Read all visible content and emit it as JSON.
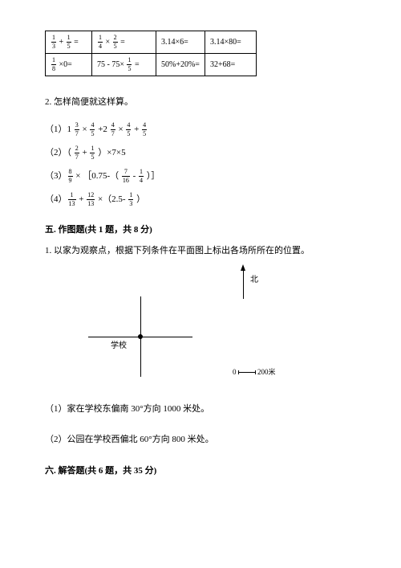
{
  "table": {
    "rows": [
      [
        {
          "parts": [
            {
              "frac": [
                "1",
                "3"
              ]
            },
            {
              "t": " + "
            },
            {
              "frac": [
                "1",
                "5"
              ]
            },
            {
              "t": " ="
            }
          ]
        },
        {
          "parts": [
            {
              "frac": [
                "1",
                "4"
              ]
            },
            {
              "t": " × "
            },
            {
              "frac": [
                "2",
                "5"
              ]
            },
            {
              "t": " ="
            }
          ]
        },
        {
          "parts": [
            {
              "t": "3.14×6="
            }
          ]
        },
        {
          "parts": [
            {
              "t": "3.14×80="
            }
          ]
        }
      ],
      [
        {
          "parts": [
            {
              "frac": [
                "1",
                "8"
              ]
            },
            {
              "t": " ×0="
            }
          ]
        },
        {
          "parts": [
            {
              "t": "75 - 75× "
            },
            {
              "frac": [
                "1",
                "5"
              ]
            },
            {
              "t": " ="
            }
          ]
        },
        {
          "parts": [
            {
              "t": "50%+20%="
            }
          ]
        },
        {
          "parts": [
            {
              "t": "32+68="
            }
          ]
        }
      ]
    ],
    "col_widths": [
      "58px",
      "80px",
      "58px",
      "64px"
    ]
  },
  "q2_title": "2. 怎样简便就这样算。",
  "expr": {
    "e1_pre": "（1）1 ",
    "e2_pre": "（2）（ ",
    "e2_mid": " ）×7×5",
    "e3_pre": "（3）",
    "e3_mid": " × ［0.75-（ ",
    "e3_end": " ）］",
    "e4_pre": "（4）",
    "e4_mid": " ×（2.5- ",
    "e4_end": " ）"
  },
  "fr": {
    "f37": [
      "3",
      "7"
    ],
    "f45": [
      "4",
      "5"
    ],
    "f47": [
      "4",
      "7"
    ],
    "f27": [
      "2",
      "7"
    ],
    "f15": [
      "1",
      "5"
    ],
    "f89": [
      "8",
      "9"
    ],
    "f716": [
      "7",
      "16"
    ],
    "f14": [
      "1",
      "4"
    ],
    "f113": [
      "1",
      "13"
    ],
    "f1213": [
      "12",
      "13"
    ],
    "f13": [
      "1",
      "3"
    ]
  },
  "sec5": {
    "title": "五. 作图题(共 1 题，共 8 分)",
    "q1": "1. 以家为观察点，根据下列条件在平面图上标出各场所所在的位置。",
    "north": "北",
    "school": "学校",
    "scale_0": "0",
    "scale_200": "200米",
    "sub1": "（1）家在学校东偏南 30°方向 1000 米处。",
    "sub2": "（2）公园在学校西偏北 60°方向 800 米处。"
  },
  "sec6": {
    "title": "六. 解答题(共 6 题，共 35 分)"
  }
}
